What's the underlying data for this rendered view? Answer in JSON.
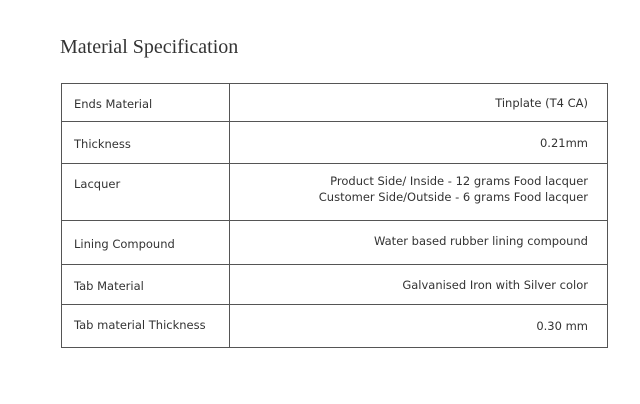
{
  "title": "Material Specification",
  "rows": [
    {
      "label": "Ends Material",
      "value": [
        "Tinplate (T4 CA)"
      ]
    },
    {
      "label": "Thickness",
      "value": [
        "0.21mm"
      ]
    },
    {
      "label": "Lacquer",
      "value": [
        "Product Side/ Inside - 12  grams Food lacquer",
        "Customer Side/Outside - 6 grams Food lacquer"
      ]
    },
    {
      "label": "Lining Compound",
      "value": [
        "Water based rubber lining compound"
      ]
    },
    {
      "label": "Tab Material",
      "value": [
        "Galvanised Iron with Silver color"
      ]
    },
    {
      "label": "Tab material Thickness",
      "value": [
        "0.30 mm"
      ]
    }
  ]
}
